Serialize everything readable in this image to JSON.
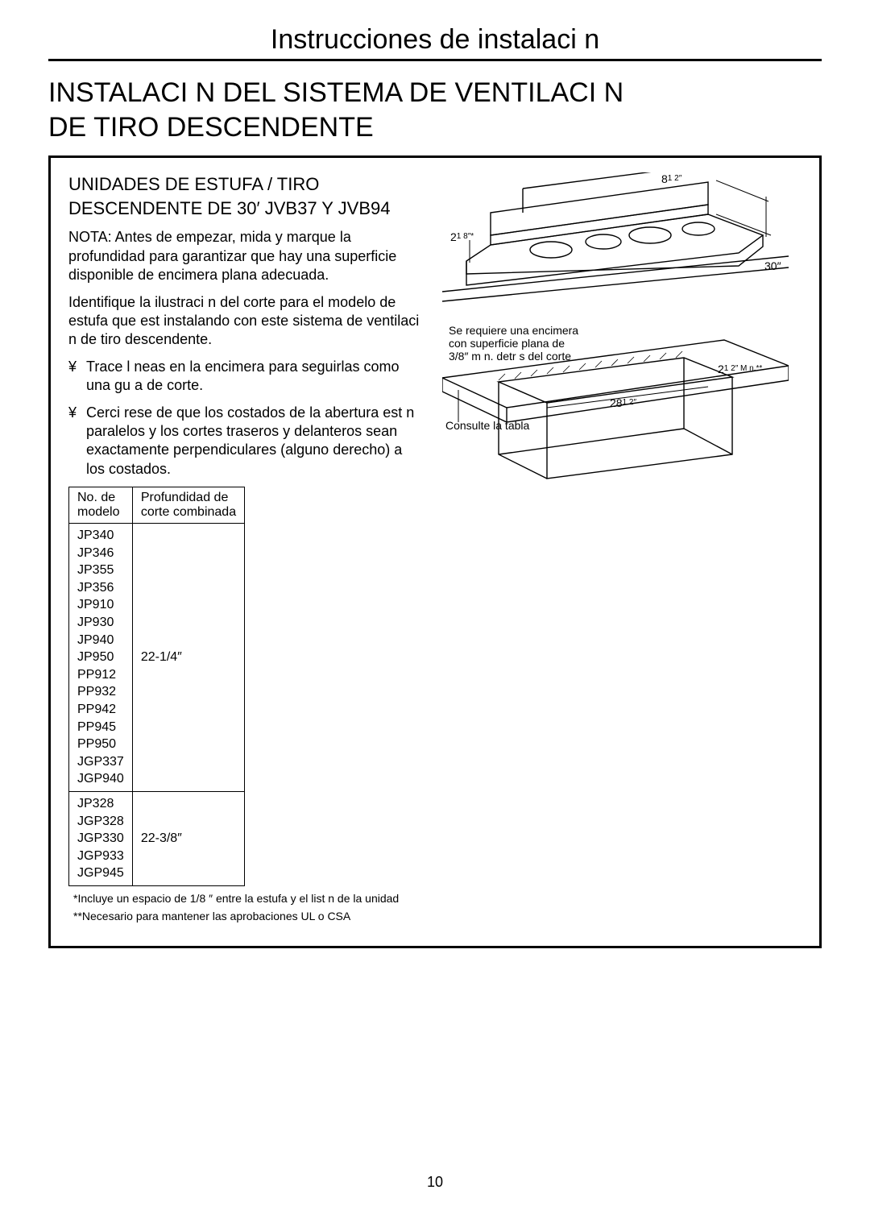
{
  "header": {
    "title": "Instrucciones de instalaci n"
  },
  "section": {
    "title_line1": "INSTALACI N DEL SISTEMA DE VENTILACI N",
    "title_line2": "DE TIRO DESCENDENTE"
  },
  "subhead": {
    "line1": "UNIDADES DE ESTUFA / TIRO",
    "line2": "DESCENDENTE DE 30′ JVB37 Y JVB94"
  },
  "paragraphs": {
    "p1": "NOTA: Antes de empezar, mida y marque la profundidad para garantizar que hay una superficie disponible de encimera plana adecuada.",
    "p2": "Identifique la ilustraci n del corte para el modelo de estufa que est  instalando con este sistema de ventilaci n de tiro descendente."
  },
  "bullets": {
    "b1": "Trace l neas en la encimera para seguirlas como una gu a de corte.",
    "b2": "Cerci rese de que los costados de la abertura est n paralelos y los cortes traseros y delanteros sean exactamente perpendiculares (alguno derecho) a los costados."
  },
  "table": {
    "headers": {
      "c1": "No. de\nmodelo",
      "c2": "Profundidad de\ncorte combinada"
    },
    "rows": [
      {
        "models": [
          "JP340",
          "JP346",
          "JP355",
          "JP356",
          "JP910",
          "JP930",
          "JP940",
          "JP950",
          "PP912",
          "PP932",
          "PP942",
          "PP945",
          "PP950",
          "JGP337",
          "JGP940"
        ],
        "depth": "22-1/4″"
      },
      {
        "models": [
          "JP328",
          "JGP328",
          "JGP330",
          "JGP933",
          "JGP945"
        ],
        "depth": "22-3/8″"
      }
    ]
  },
  "footnotes": {
    "f1": "*Incluye un espacio de 1/8  ″ entre la estufa y el list n de la unidad",
    "f2": "**Necesario para mantener las aprobaciones UL o CSA"
  },
  "diagram": {
    "dim_8_half": "8",
    "dim_8_half_frac": "1 2″",
    "dim_2_18": "2",
    "dim_2_18_frac": "1 8″*",
    "dim_30": "30″",
    "note_line1": "Se requiere una encimera",
    "note_line2": "con superficie plana de",
    "note_line3": "3/8″ m n. detr s del corte",
    "dim_2_half_min": "2",
    "dim_2_half_min_frac": "1 2″ M n.**",
    "dim_28_half": "28",
    "dim_28_half_frac": "1 2″",
    "consult": "Consulte la tabla",
    "colors": {
      "stroke": "#000000",
      "fill_none": "none",
      "hatch": "#000000"
    }
  },
  "page_number": "10"
}
